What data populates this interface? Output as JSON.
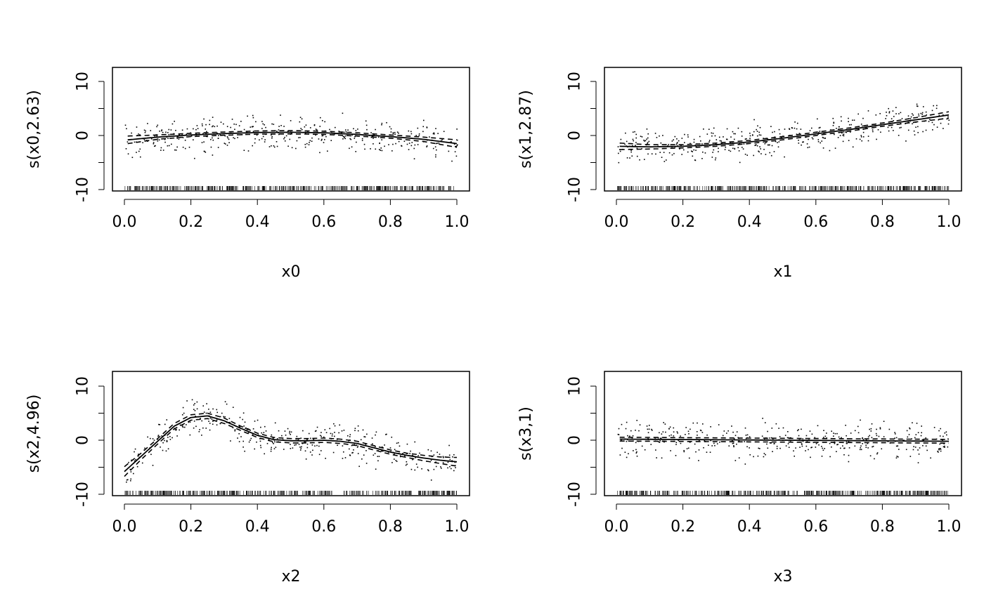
{
  "chart_data": [
    {
      "type": "line",
      "title": "",
      "xlabel": "x0",
      "ylabel": "s(x0,2.63)",
      "xlim": [
        0,
        1
      ],
      "ylim": [
        -10,
        12
      ],
      "xticks": [
        "0.0",
        "0.2",
        "0.4",
        "0.6",
        "0.8",
        "1.0"
      ],
      "yticks": [
        "-10",
        "-5",
        "0",
        "5",
        "10"
      ],
      "grid": false,
      "smooth": {
        "x": [
          0.01,
          0.1,
          0.2,
          0.3,
          0.4,
          0.5,
          0.6,
          0.7,
          0.8,
          0.9,
          1.0
        ],
        "y": [
          -0.8,
          -0.3,
          0.1,
          0.35,
          0.55,
          0.6,
          0.5,
          0.2,
          -0.2,
          -0.7,
          -1.5
        ]
      },
      "band_halfwidth": [
        0.7,
        0.4,
        0.3,
        0.3,
        0.3,
        0.3,
        0.3,
        0.3,
        0.3,
        0.4,
        0.7
      ],
      "residual_spread": 2.0
    },
    {
      "type": "line",
      "title": "",
      "xlabel": "x1",
      "ylabel": "s(x1,2.87)",
      "xlim": [
        0,
        1
      ],
      "ylim": [
        -10,
        12
      ],
      "xticks": [
        "0.0",
        "0.2",
        "0.4",
        "0.6",
        "0.8",
        "1.0"
      ],
      "yticks": [
        "-10",
        "-5",
        "0",
        "5",
        "10"
      ],
      "grid": false,
      "smooth": {
        "x": [
          0.01,
          0.1,
          0.2,
          0.3,
          0.4,
          0.5,
          0.6,
          0.7,
          0.8,
          0.9,
          1.0
        ],
        "y": [
          -2.0,
          -2.1,
          -2.0,
          -1.7,
          -1.2,
          -0.5,
          0.3,
          1.1,
          2.0,
          2.9,
          3.8
        ]
      },
      "band_halfwidth": [
        0.6,
        0.4,
        0.3,
        0.3,
        0.3,
        0.3,
        0.3,
        0.3,
        0.3,
        0.4,
        0.6
      ],
      "residual_spread": 2.0
    },
    {
      "type": "line",
      "title": "",
      "xlabel": "x2",
      "ylabel": "s(x2,4.96)",
      "xlim": [
        0,
        1
      ],
      "ylim": [
        -10,
        12
      ],
      "xticks": [
        "0.0",
        "0.2",
        "0.4",
        "0.6",
        "0.8",
        "1.0"
      ],
      "yticks": [
        "-10",
        "-5",
        "0",
        "5",
        "10"
      ],
      "grid": false,
      "smooth": {
        "x": [
          0.0,
          0.05,
          0.1,
          0.15,
          0.2,
          0.25,
          0.3,
          0.35,
          0.4,
          0.45,
          0.5,
          0.55,
          0.6,
          0.65,
          0.7,
          0.75,
          0.8,
          0.85,
          0.9,
          0.95,
          1.0
        ],
        "y": [
          -5.8,
          -3.0,
          -0.2,
          2.6,
          4.2,
          4.5,
          3.6,
          2.2,
          0.9,
          0.1,
          -0.1,
          -0.1,
          0.0,
          -0.2,
          -0.6,
          -1.4,
          -2.2,
          -2.8,
          -3.3,
          -3.7,
          -4.0
        ]
      },
      "band_halfwidth": [
        0.9,
        0.6,
        0.5,
        0.5,
        0.5,
        0.5,
        0.5,
        0.4,
        0.4,
        0.4,
        0.4,
        0.4,
        0.4,
        0.4,
        0.4,
        0.4,
        0.4,
        0.4,
        0.5,
        0.6,
        0.8
      ],
      "residual_spread": 2.0
    },
    {
      "type": "line",
      "title": "",
      "xlabel": "x3",
      "ylabel": "s(x3,1)",
      "xlim": [
        0,
        1
      ],
      "ylim": [
        -10,
        12
      ],
      "xticks": [
        "0.0",
        "0.2",
        "0.4",
        "0.6",
        "0.8",
        "1.0"
      ],
      "yticks": [
        "-10",
        "-5",
        "0",
        "5",
        "10"
      ],
      "grid": false,
      "smooth": {
        "x": [
          0.01,
          1.0
        ],
        "y": [
          0.2,
          -0.2
        ]
      },
      "band_halfwidth": [
        0.35,
        0.35
      ],
      "residual_spread": 2.0
    }
  ]
}
